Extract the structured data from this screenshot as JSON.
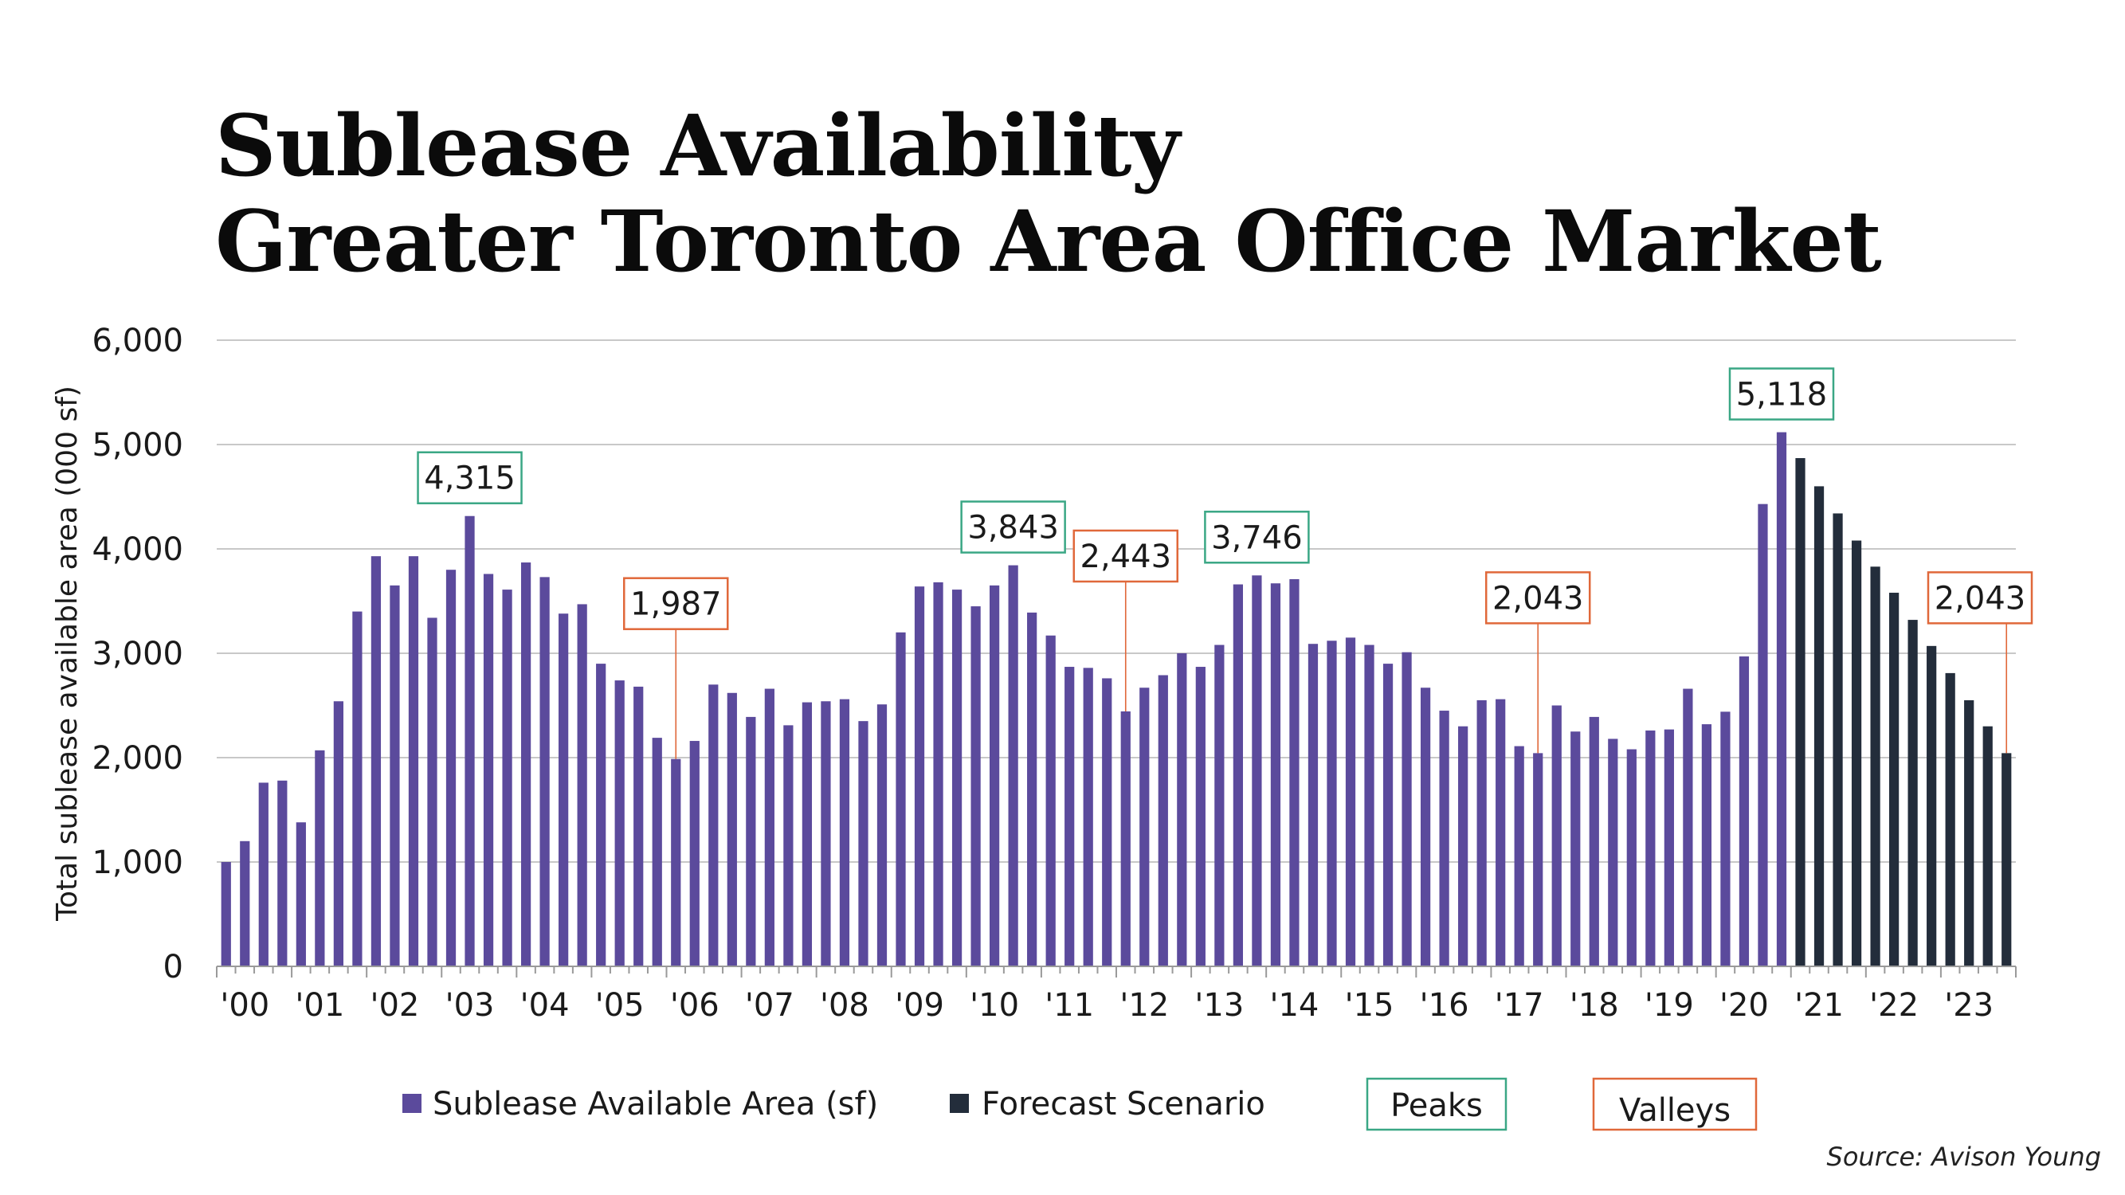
{
  "title_line1": "Sublease Availability",
  "title_line2": "Greater Toronto Area Office Market",
  "source": "Source: Avison Young",
  "colors": {
    "actual": "#5b4a9c",
    "forecast": "#232d3b",
    "peak": "#3aa785",
    "valley": "#e0683a",
    "grid": "#c8c8c8",
    "text": "#1a1a1a"
  },
  "legend": {
    "actual_label": "Sublease Available Area (sf)",
    "forecast_label": "Forecast Scenario",
    "peaks_label": "Peaks",
    "valleys_label": "Valleys"
  },
  "chart_data": {
    "type": "bar",
    "ylabel": "Total sublease available area (000 sf)",
    "ylim": [
      0,
      6000
    ],
    "yticks": [
      0,
      1000,
      2000,
      3000,
      4000,
      5000,
      6000
    ],
    "ytick_labels": [
      "0",
      "1,000",
      "2,000",
      "3,000",
      "4,000",
      "5,000",
      "6,000"
    ],
    "xtick_labels": [
      "'00",
      "'01",
      "'02",
      "'03",
      "'04",
      "'05",
      "'06",
      "'07",
      "'08",
      "'09",
      "'10",
      "'11",
      "'12",
      "'13",
      "'14",
      "'15",
      "'16",
      "'17",
      "'18",
      "'19",
      "'20",
      "'21",
      "'22",
      "'23"
    ],
    "grid": true,
    "legend_position": "bottom",
    "series": [
      {
        "name": "Sublease Available Area (sf)",
        "values": [
          1000,
          1200,
          1760,
          1780,
          1380,
          2070,
          2540,
          3400,
          3930,
          3650,
          3930,
          3340,
          3800,
          4315,
          3760,
          3610,
          3870,
          3730,
          3380,
          3470,
          2900,
          2740,
          2680,
          2190,
          1987,
          2160,
          2700,
          2620,
          2390,
          2660,
          2310,
          2530,
          2540,
          2560,
          2350,
          2510,
          3200,
          3640,
          3680,
          3610,
          3450,
          3650,
          3843,
          3390,
          3170,
          2870,
          2860,
          2760,
          2443,
          2670,
          2790,
          3000,
          2870,
          3080,
          3660,
          3746,
          3670,
          3710,
          3090,
          3120,
          3150,
          3080,
          2900,
          3010,
          2670,
          2450,
          2300,
          2550,
          2560,
          2110,
          2043,
          2500,
          2250,
          2390,
          2180,
          2080,
          2260,
          2270,
          2660,
          2320,
          2440,
          2970,
          4430,
          5118
        ]
      },
      {
        "name": "Forecast Scenario",
        "start_index": 84,
        "values": [
          4870,
          4600,
          4340,
          4080,
          3830,
          3580,
          3320,
          3070,
          2810,
          2550,
          2300,
          2043
        ]
      }
    ],
    "annotations": [
      {
        "kind": "peak",
        "index": 13,
        "label": "4,315"
      },
      {
        "kind": "valley",
        "index": 24,
        "label": "1,987"
      },
      {
        "kind": "peak",
        "index": 42,
        "label": "3,843"
      },
      {
        "kind": "valley",
        "index": 48,
        "label": "2,443"
      },
      {
        "kind": "peak",
        "index": 55,
        "label": "3,746"
      },
      {
        "kind": "valley",
        "index": 70,
        "label": "2,043"
      },
      {
        "kind": "peak",
        "index": 83,
        "label": "5,118"
      },
      {
        "kind": "valley",
        "index": 95,
        "label": "2,043"
      }
    ]
  }
}
